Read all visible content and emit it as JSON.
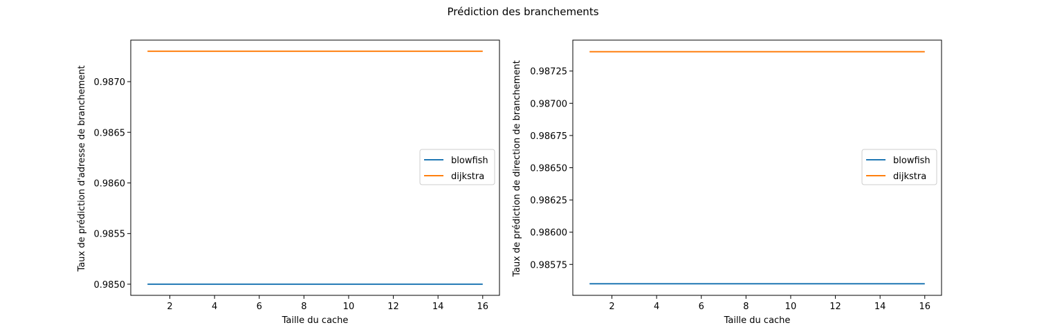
{
  "figure": {
    "title": "Prédiction des branchements"
  },
  "chart_data": [
    {
      "type": "line",
      "xlabel": "Taille du cache",
      "ylabel": "Taux de prédiction d'adresse de branchement",
      "xlim": [
        0.25,
        16.75
      ],
      "ylim": [
        0.98489,
        0.98741
      ],
      "xticks": [
        2,
        4,
        6,
        8,
        10,
        12,
        14,
        16
      ],
      "yticks": [
        0.985,
        0.9855,
        0.986,
        0.9865,
        0.987
      ],
      "ytick_labels": [
        "0.9850",
        "0.9855",
        "0.9860",
        "0.9865",
        "0.9870"
      ],
      "grid": false,
      "legend_position": "center-right",
      "series": [
        {
          "name": "blowfish",
          "color": "#1f77b4",
          "x": [
            1,
            16
          ],
          "y": [
            0.985,
            0.985
          ]
        },
        {
          "name": "dijkstra",
          "color": "#ff7f0e",
          "x": [
            1,
            16
          ],
          "y": [
            0.9873,
            0.9873
          ]
        }
      ]
    },
    {
      "type": "line",
      "xlabel": "Taille du cache",
      "ylabel": "Taux de prédiction de direction de branchement",
      "xlim": [
        0.25,
        16.75
      ],
      "ylim": [
        0.98551,
        0.98749
      ],
      "xticks": [
        2,
        4,
        6,
        8,
        10,
        12,
        14,
        16
      ],
      "yticks": [
        0.98575,
        0.986,
        0.98625,
        0.9865,
        0.98675,
        0.987,
        0.98725
      ],
      "ytick_labels": [
        "0.98575",
        "0.98600",
        "0.98625",
        "0.98650",
        "0.98675",
        "0.98700",
        "0.98725"
      ],
      "grid": false,
      "legend_position": "center-right",
      "series": [
        {
          "name": "blowfish",
          "color": "#1f77b4",
          "x": [
            1,
            16
          ],
          "y": [
            0.9856,
            0.9856
          ]
        },
        {
          "name": "dijkstra",
          "color": "#ff7f0e",
          "x": [
            1,
            16
          ],
          "y": [
            0.9874,
            0.9874
          ]
        }
      ]
    }
  ]
}
